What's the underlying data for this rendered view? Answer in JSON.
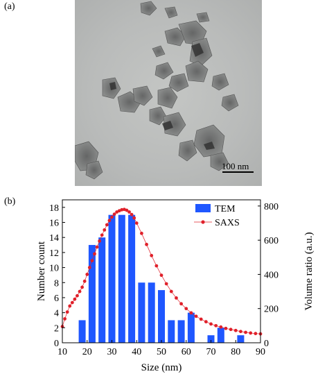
{
  "panels": {
    "a_label": "(a)",
    "b_label": "(b)"
  },
  "micrograph": {
    "scale_bar_label": "100 nm"
  },
  "chart_data": {
    "type": "bar",
    "xlabel": "Size (nm)",
    "ylabel": "Number count",
    "y2label": "Volume ratio (a.u.)",
    "xlim": [
      10,
      90
    ],
    "ylim": [
      0,
      19
    ],
    "y2lim": [
      0,
      836
    ],
    "xticks": [
      10,
      20,
      30,
      40,
      50,
      60,
      70,
      80,
      90
    ],
    "yticks": [
      0,
      2,
      4,
      6,
      8,
      10,
      12,
      14,
      16,
      18
    ],
    "y2ticks": [
      0,
      200,
      400,
      600,
      800
    ],
    "legend": "top-right",
    "series": [
      {
        "name": "TEM",
        "type": "bar",
        "axis": "left",
        "color": "#1f57ff",
        "x": [
          18,
          22,
          26,
          30,
          34,
          38,
          42,
          46,
          50,
          54,
          58,
          62,
          70,
          74,
          82
        ],
        "values": [
          3,
          13,
          14,
          17,
          17,
          17,
          8,
          8,
          7,
          3,
          3,
          4,
          1,
          2,
          1
        ]
      },
      {
        "name": "SAXS",
        "type": "line",
        "axis": "right",
        "color": "#e0202a",
        "x": [
          10,
          11,
          12,
          13,
          14,
          15,
          16,
          17,
          18,
          19,
          20,
          21,
          22,
          23,
          24,
          25,
          26,
          27,
          28,
          29,
          30,
          31,
          32,
          33,
          34,
          35,
          36,
          37,
          38,
          39,
          40,
          42,
          44,
          46,
          48,
          50,
          52,
          54,
          56,
          58,
          60,
          62,
          64,
          66,
          68,
          70,
          72,
          74,
          76,
          78,
          80,
          82,
          84,
          86,
          88,
          90
        ],
        "values": [
          95,
          140,
          180,
          215,
          235,
          255,
          275,
          300,
          325,
          360,
          400,
          440,
          480,
          520,
          560,
          595,
          630,
          660,
          690,
          715,
          735,
          752,
          765,
          772,
          778,
          780,
          775,
          765,
          750,
          730,
          700,
          640,
          575,
          510,
          450,
          395,
          345,
          300,
          262,
          228,
          200,
          175,
          155,
          138,
          123,
          110,
          100,
          92,
          84,
          78,
          72,
          66,
          61,
          57,
          54,
          52
        ]
      }
    ]
  }
}
